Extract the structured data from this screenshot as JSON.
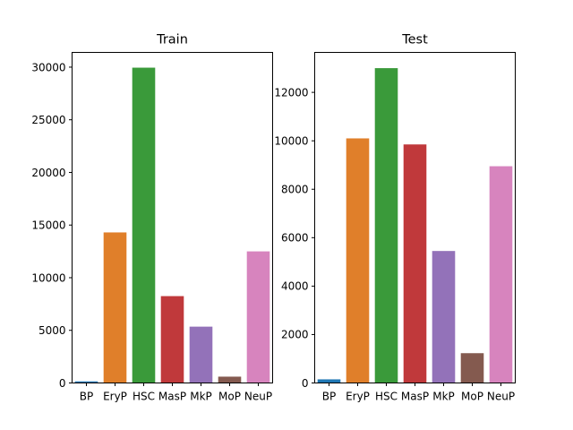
{
  "chart_data": [
    {
      "type": "bar",
      "title": "Train",
      "categories": [
        "BP",
        "EryP",
        "HSC",
        "MasP",
        "MkP",
        "MoP",
        "NeuP"
      ],
      "values": [
        150,
        14300,
        29950,
        8250,
        5350,
        600,
        12500
      ],
      "colors": [
        "#1f77b4",
        "#e07f2a",
        "#3a9a3a",
        "#c0393b",
        "#9372b9",
        "#845a4f",
        "#d784be"
      ],
      "ylim": [
        0,
        31400
      ],
      "yticks": [
        0,
        5000,
        10000,
        15000,
        20000,
        25000,
        30000
      ],
      "ytick_labels": [
        "0",
        "5000",
        "10000",
        "15000",
        "20000",
        "25000",
        "30000"
      ],
      "xlabel": "",
      "ylabel": "",
      "grid": false
    },
    {
      "type": "bar",
      "title": "Test",
      "categories": [
        "BP",
        "EryP",
        "HSC",
        "MasP",
        "MkP",
        "MoP",
        "NeuP"
      ],
      "values": [
        150,
        10100,
        13000,
        9850,
        5450,
        1230,
        8950
      ],
      "colors": [
        "#1f77b4",
        "#e07f2a",
        "#3a9a3a",
        "#c0393b",
        "#9372b9",
        "#845a4f",
        "#d784be"
      ],
      "ylim": [
        0,
        13650
      ],
      "yticks": [
        0,
        2000,
        4000,
        6000,
        8000,
        10000,
        12000
      ],
      "ytick_labels": [
        "0",
        "2000",
        "4000",
        "6000",
        "8000",
        "10000",
        "12000"
      ],
      "xlabel": "",
      "ylabel": "",
      "grid": false
    }
  ]
}
